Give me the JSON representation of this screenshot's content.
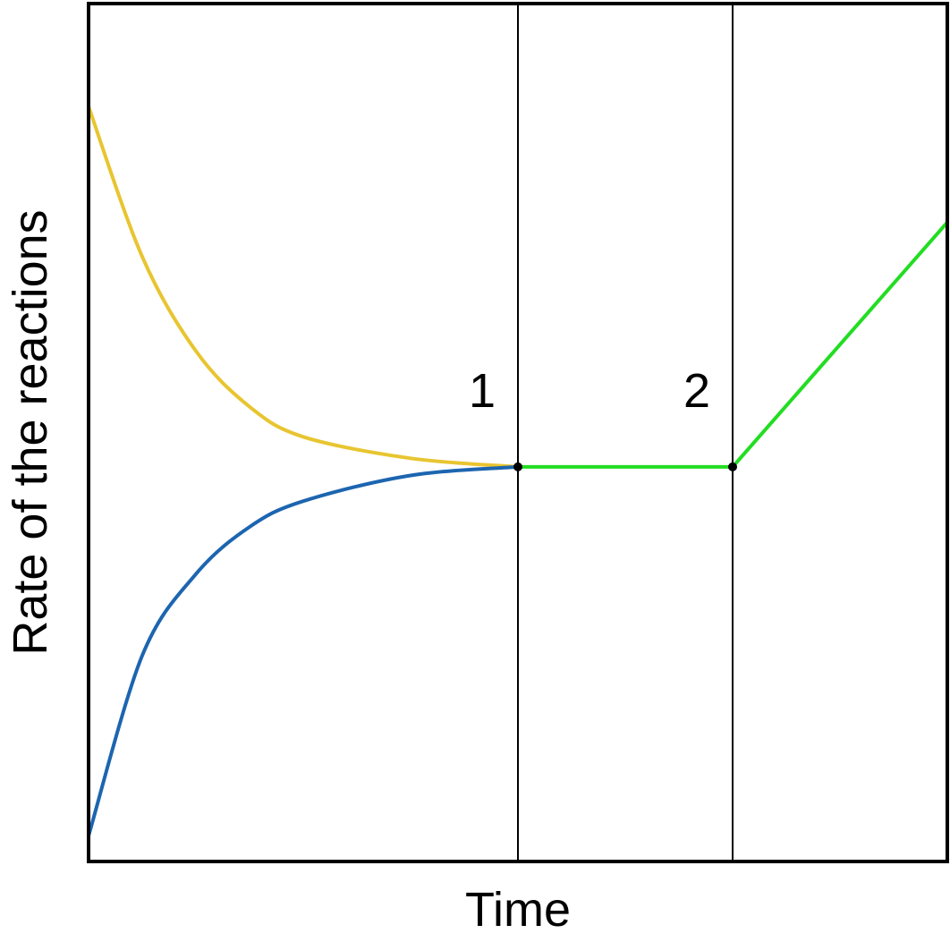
{
  "chart_data": {
    "type": "line",
    "xlabel": "Time",
    "ylabel": "Rate of the reactions",
    "xlim": [
      0,
      4
    ],
    "ylim": [
      0,
      10
    ],
    "grid": false,
    "legend": "none",
    "series": [
      {
        "color": "#e8c530",
        "style": "decay-to-equilibrium",
        "points": [
          [
            0,
            8.8
          ],
          [
            0.25,
            7.05
          ],
          [
            0.5,
            5.95
          ],
          [
            0.75,
            5.3
          ],
          [
            1.0,
            4.95
          ],
          [
            1.5,
            4.7
          ],
          [
            2.0,
            4.6
          ]
        ]
      },
      {
        "color": "#1c65b0",
        "style": "rise-to-equilibrium",
        "points": [
          [
            0,
            0.3
          ],
          [
            0.25,
            2.4
          ],
          [
            0.5,
            3.35
          ],
          [
            0.75,
            3.9
          ],
          [
            1.0,
            4.2
          ],
          [
            1.5,
            4.5
          ],
          [
            2.0,
            4.6
          ]
        ]
      },
      {
        "color": "#22dd22",
        "style": "linear",
        "points": [
          [
            2.0,
            4.6
          ],
          [
            3.0,
            4.6
          ],
          [
            4.0,
            7.45
          ]
        ]
      }
    ],
    "markers": [
      {
        "label": "1",
        "x": 2.0,
        "y": 4.6
      },
      {
        "label": "2",
        "x": 3.0,
        "y": 4.6
      }
    ]
  }
}
